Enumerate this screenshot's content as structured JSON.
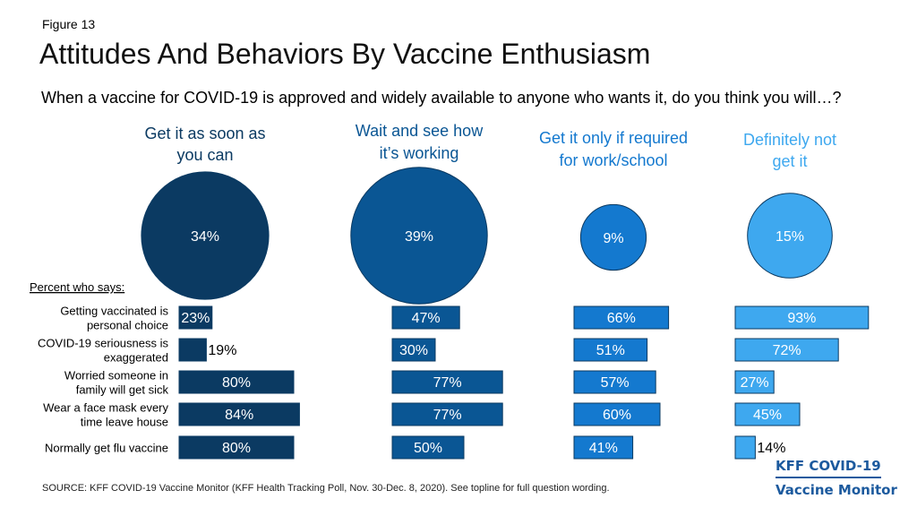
{
  "figure_label": "Figure 13",
  "title": "Attitudes And Behaviors By Vaccine Enthusiasm",
  "question": "When a vaccine for COVID-19 is approved and widely available to anyone who wants it, do you think you will…?",
  "source": "SOURCE: KFF COVID-19 Vaccine Monitor (KFF Health Tracking Poll, Nov. 30-Dec. 8, 2020). See topline for full question wording.",
  "logo": {
    "line1": "KFF COVID-19",
    "line2": "Vaccine Monitor"
  },
  "chart_data": {
    "type": "bar",
    "subheading": "Percent who says:",
    "groups": [
      {
        "name": "Get it as soon as you can",
        "share": 34,
        "share_label": "34%",
        "color": "#0b3a62",
        "label_color": "#0b3a62"
      },
      {
        "name": "Wait and see how it’s working",
        "share": 39,
        "share_label": "39%",
        "color": "#0a5694",
        "label_color": "#0a5694"
      },
      {
        "name": "Get it only if required for work/school",
        "share": 9,
        "share_label": "9%",
        "color": "#1479cf",
        "label_color": "#1479cf"
      },
      {
        "name": "Definitely not get it",
        "share": 15,
        "share_label": "15%",
        "color": "#3ea8ef",
        "label_color": "#3ea8ef"
      }
    ],
    "categories": [
      "Getting vaccinated is personal choice",
      "COVID-19 seriousness is exaggerated",
      "Worried someone in family will get sick",
      "Wear a face mask every time leave house",
      "Normally get flu vaccine"
    ],
    "series": [
      {
        "name": "Get it as soon as you can",
        "values": [
          23,
          19,
          80,
          84,
          80
        ],
        "labels": [
          "23%",
          "19%",
          "80%",
          "84%",
          "80%"
        ]
      },
      {
        "name": "Wait and see how it’s working",
        "values": [
          47,
          30,
          77,
          77,
          50
        ],
        "labels": [
          "47%",
          "30%",
          "77%",
          "77%",
          "50%"
        ]
      },
      {
        "name": "Get it only if required for work/school",
        "values": [
          66,
          51,
          57,
          60,
          41
        ],
        "labels": [
          "66%",
          "51%",
          "57%",
          "60%",
          "41%"
        ]
      },
      {
        "name": "Definitely not get it",
        "values": [
          93,
          72,
          27,
          45,
          14
        ],
        "labels": [
          "93%",
          "72%",
          "27%",
          "45%",
          "14%"
        ]
      }
    ],
    "xlim": [
      0,
      100
    ],
    "grid": false,
    "legend": "none"
  }
}
